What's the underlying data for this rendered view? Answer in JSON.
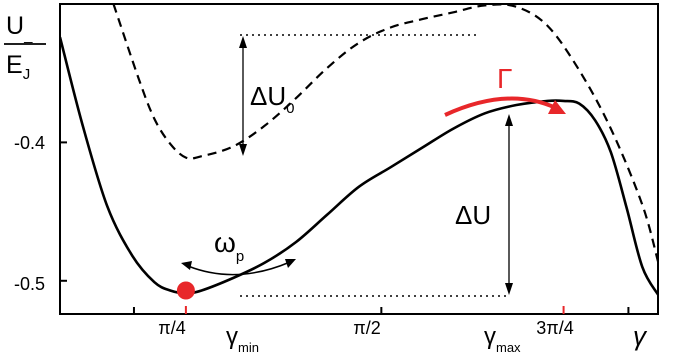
{
  "chart_data": {
    "type": "line",
    "ylabel_num": "U",
    "ylabel_num_sub": "_",
    "ylabel_den": "E",
    "ylabel_den_sub": "J",
    "xlabel": "γ",
    "xlim": [
      0.55,
      2.45
    ],
    "ylim": [
      -0.524,
      -0.3
    ],
    "x_ticks": [
      {
        "value": 0.785,
        "label": "π/4"
      },
      {
        "value": 1.571,
        "label": "π/2"
      },
      {
        "value": 2.356,
        "label": "3π/4"
      }
    ],
    "y_ticks": [
      {
        "value": -0.4,
        "label": "-0.4"
      },
      {
        "value": -0.5,
        "label": "-0.5"
      }
    ],
    "special_ticks": [
      {
        "value": 0.95,
        "label": "γ",
        "sub": "min"
      },
      {
        "value": 2.15,
        "label": "γ",
        "sub": "max"
      }
    ],
    "series": [
      {
        "style": "solid",
        "color": "#000000",
        "x": [
          0.55,
          0.62,
          0.7,
          0.78,
          0.85,
          0.9,
          0.95,
          1.0,
          1.1,
          1.2,
          1.3,
          1.4,
          1.5,
          1.6,
          1.7,
          1.8,
          1.9,
          2.0,
          2.1,
          2.15,
          2.2,
          2.25,
          2.3,
          2.35,
          2.4,
          2.45
        ],
        "y": [
          -0.324,
          -0.386,
          -0.446,
          -0.482,
          -0.501,
          -0.507,
          -0.509,
          -0.507,
          -0.498,
          -0.487,
          -0.472,
          -0.452,
          -0.432,
          -0.418,
          -0.404,
          -0.39,
          -0.379,
          -0.373,
          -0.37,
          -0.37,
          -0.372,
          -0.384,
          -0.407,
          -0.447,
          -0.49,
          -0.51
        ]
      },
      {
        "style": "dashed",
        "color": "#000000",
        "x": [
          0.72,
          0.8,
          0.85,
          0.9,
          0.95,
          1.0,
          1.1,
          1.2,
          1.3,
          1.4,
          1.5,
          1.6,
          1.7,
          1.8,
          1.9,
          2.0,
          2.1,
          2.2,
          2.3,
          2.4,
          2.45
        ],
        "y": [
          -0.3,
          -0.354,
          -0.383,
          -0.401,
          -0.411,
          -0.41,
          -0.403,
          -0.388,
          -0.368,
          -0.346,
          -0.328,
          -0.317,
          -0.311,
          -0.306,
          -0.301,
          -0.302,
          -0.316,
          -0.348,
          -0.39,
          -0.445,
          -0.486
        ]
      }
    ],
    "annotations": {
      "delta_u0": {
        "text": "ΔU",
        "sub": "0"
      },
      "delta_u": {
        "text": "ΔU"
      },
      "gamma_rate": {
        "text": "Γ",
        "color": "#e8272a"
      },
      "omega_p": {
        "text": "ω",
        "sub": "p"
      },
      "particle": {
        "x": 0.95,
        "y": -0.507,
        "color": "#e8272a"
      }
    }
  }
}
